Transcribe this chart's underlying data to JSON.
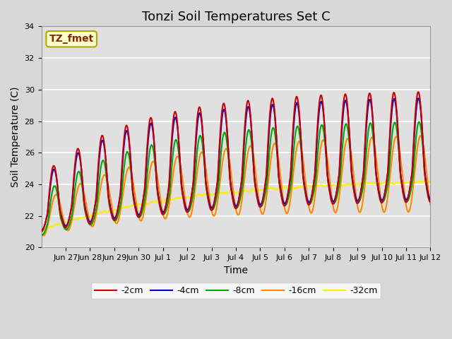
{
  "title": "Tonzi Soil Temperatures Set C",
  "xlabel": "Time",
  "ylabel": "Soil Temperature (C)",
  "ylim": [
    20,
    34
  ],
  "xlim": [
    0,
    16
  ],
  "annotation": "TZ_fmet",
  "series_colors": [
    "#cc0000",
    "#0000cc",
    "#00aa00",
    "#ff8800",
    "#ffee00"
  ],
  "series_labels": [
    "-2cm",
    "-4cm",
    "-8cm",
    "-16cm",
    "-32cm"
  ],
  "series_linewidth": 1.5,
  "bg_color": "#e0e0e0",
  "grid_color": "#ffffff",
  "yticks": [
    20,
    22,
    24,
    26,
    28,
    30,
    32,
    34
  ],
  "xtick_positions": [
    1,
    2,
    3,
    4,
    5,
    6,
    7,
    8,
    9,
    10,
    11,
    12,
    13,
    14,
    15,
    16
  ],
  "xtick_labels": [
    "Jun 27",
    "Jun 28",
    "Jun 29",
    "Jun 30",
    "Jul 1",
    "Jul 2",
    "Jul 3",
    "Jul 4",
    "Jul 5",
    "Jul 6",
    "Jul 7",
    "Jul 8",
    "Jul 9",
    "Jul 10",
    "Jul 11",
    "Jul 12"
  ],
  "title_fontsize": 13,
  "label_fontsize": 10,
  "tick_fontsize": 8,
  "legend_fontsize": 9,
  "n_points": 768
}
